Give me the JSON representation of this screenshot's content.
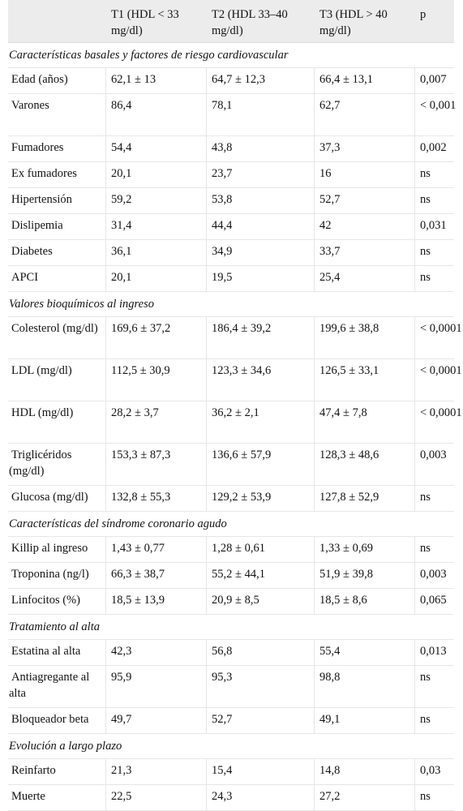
{
  "header": {
    "col0": "",
    "col1": "T1 (HDL < 33 mg/dl)",
    "col2": "T2 (HDL 33–40 mg/dl)",
    "col3": "T3 (HDL > 40 mg/dl)",
    "col4": "p"
  },
  "sections": [
    {
      "title": "Características basales y factores de riesgo cardiovascular",
      "rows": [
        {
          "label": "Edad (años)",
          "t1": "62,1 ± 13",
          "t2": "64,7 ± 12,3",
          "t3": "66,4 ± 13,1",
          "p": "0,007"
        },
        {
          "label": "Varones",
          "t1": "86,4",
          "t2": "78,1",
          "t3": "62,7",
          "p": "< 0,001"
        },
        {
          "label": "Fumadores",
          "t1": "54,4",
          "t2": "43,8",
          "t3": "37,3",
          "p": "0,002"
        },
        {
          "label": "Ex fumadores",
          "t1": "20,1",
          "t2": "23,7",
          "t3": "16",
          "p": "ns"
        },
        {
          "label": "Hipertensión",
          "t1": "59,2",
          "t2": "53,8",
          "t3": "52,7",
          "p": "ns"
        },
        {
          "label": "Dislipemia",
          "t1": "31,4",
          "t2": "44,4",
          "t3": "42",
          "p": "0,031"
        },
        {
          "label": "Diabetes",
          "t1": "36,1",
          "t2": "34,9",
          "t3": "33,7",
          "p": "ns"
        },
        {
          "label": "APCI",
          "t1": "20,1",
          "t2": "19,5",
          "t3": "25,4",
          "p": "ns"
        }
      ]
    },
    {
      "title": "Valores bioquímicos al ingreso",
      "rows": [
        {
          "label": "Colesterol (mg/dl)",
          "t1": "169,6 ± 37,2",
          "t2": "186,4 ± 39,2",
          "t3": "199,6 ± 38,8",
          "p": "< 0,0001"
        },
        {
          "label": "LDL (mg/dl)",
          "t1": "112,5 ± 30,9",
          "t2": "123,3 ± 34,6",
          "t3": "126,5 ± 33,1",
          "p": "< 0,0001"
        },
        {
          "label": "HDL (mg/dl)",
          "t1": "28,2 ± 3,7",
          "t2": "36,2 ± 2,1",
          "t3": "47,4 ± 7,8",
          "p": "< 0,0001"
        },
        {
          "label": "Triglicéridos (mg/dl)",
          "t1": "153,3 ± 87,3",
          "t2": "136,6 ± 57,9",
          "t3": "128,3 ± 48,6",
          "p": "0,003"
        },
        {
          "label": "Glucosa (mg/dl)",
          "t1": "132,8 ± 55,3",
          "t2": "129,2 ± 53,9",
          "t3": "127,8 ± 52,9",
          "p": "ns"
        }
      ]
    },
    {
      "title": "Características del síndrome coronario agudo",
      "rows": [
        {
          "label": "Killip al ingreso",
          "t1": "1,43 ± 0,77",
          "t2": "1,28 ± 0,61",
          "t3": "1,33 ± 0,69",
          "p": "ns"
        },
        {
          "label": "Troponina (ng/l)",
          "t1": "66,3 ± 38,7",
          "t2": "55,2 ± 44,1",
          "t3": "51,9 ± 39,8",
          "p": "0,003"
        },
        {
          "label": "Linfocitos (%)",
          "t1": "18,5 ± 13,9",
          "t2": "20,9 ± 8,5",
          "t3": "18,5 ± 8,6",
          "p": "0,065"
        }
      ]
    },
    {
      "title": "Tratamiento al alta",
      "rows": [
        {
          "label": "Estatina al alta",
          "t1": "42,3",
          "t2": "56,8",
          "t3": "55,4",
          "p": "0,013"
        },
        {
          "label": "Antiagregante al alta",
          "t1": "95,9",
          "t2": "95,3",
          "t3": "98,8",
          "p": "ns"
        },
        {
          "label": "Bloqueador beta",
          "t1": "49,7",
          "t2": "52,7",
          "t3": "49,1",
          "p": "ns"
        }
      ]
    },
    {
      "title": "Evolución a largo plazo",
      "rows": [
        {
          "label": "Reinfarto",
          "t1": "21,3",
          "t2": "15,4",
          "t3": "14,8",
          "p": "0,03"
        },
        {
          "label": "Muerte",
          "t1": "22,5",
          "t2": "24,3",
          "t3": "27,2",
          "p": "ns"
        }
      ]
    }
  ]
}
